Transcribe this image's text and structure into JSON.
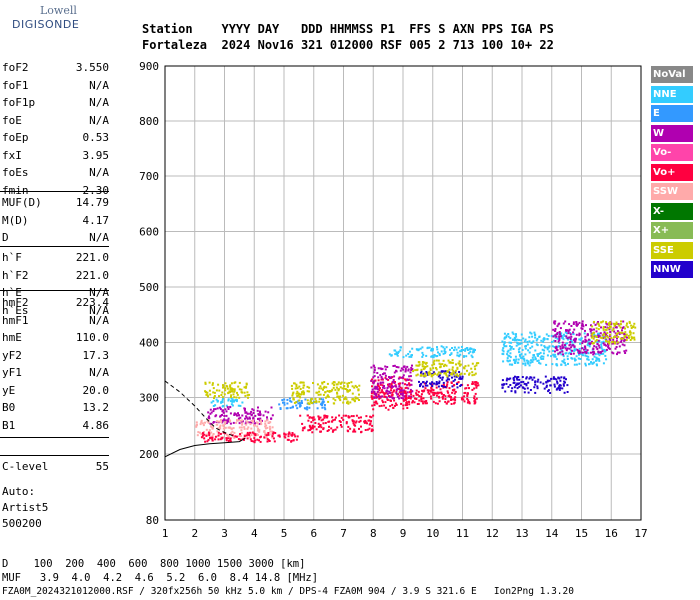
{
  "logo": {
    "brand": "Lowell",
    "name": "DIGISONDE"
  },
  "header": {
    "labels": "Station    YYYY DAY   DDD HHMMSS P1  FFS S AXN PPS IGA PS",
    "values": "Fortaleza  2024 Nov16 321 012000 RSF 005 2 713 100 10+ 22"
  },
  "params_group1": [
    {
      "label": "foF2",
      "value": "3.550"
    },
    {
      "label": "foF1",
      "value": "N/A"
    },
    {
      "label": "foF1p",
      "value": "N/A"
    },
    {
      "label": "foE",
      "value": "N/A"
    },
    {
      "label": "foEp",
      "value": "0.53"
    },
    {
      "label": "fxI",
      "value": "3.95"
    },
    {
      "label": "foEs",
      "value": "N/A"
    },
    {
      "label": "fmin",
      "value": "2.30"
    }
  ],
  "params_group2": [
    {
      "label": "MUF(D)",
      "value": "14.79"
    },
    {
      "label": "M(D)",
      "value": "4.17"
    },
    {
      "label": "D",
      "value": "N/A"
    }
  ],
  "params_group3": [
    {
      "label": "h`F",
      "value": "221.0"
    },
    {
      "label": "h`F2",
      "value": "221.0"
    },
    {
      "label": "h`E",
      "value": "N/A"
    },
    {
      "label": "h`Es",
      "value": "N/A"
    }
  ],
  "params_group4": [
    {
      "label": "hmF2",
      "value": "223.4"
    },
    {
      "label": "hmF1",
      "value": "N/A"
    },
    {
      "label": "hmE",
      "value": "110.0"
    },
    {
      "label": "yF2",
      "value": "17.3"
    },
    {
      "label": "yF1",
      "value": "N/A"
    },
    {
      "label": "yE",
      "value": "20.0"
    },
    {
      "label": "B0",
      "value": "13.2"
    },
    {
      "label": "B1",
      "value": "4.86"
    }
  ],
  "clevel": {
    "label": "C-level",
    "value": "55"
  },
  "auto": [
    "Auto:",
    "Artist5",
    "500200"
  ],
  "bottom": {
    "d_line": "D    100  200  400  600  800 1000 1500 3000 [km]",
    "muf_line": "MUF   3.9  4.0  4.2  4.6  5.2  6.0  8.4 14.8 [MHz]",
    "file_line": "FZA0M_2024321012000.RSF / 320fx256h 50 kHz 5.0 km / DPS-4 FZA0M 904 / 3.9 S 321.6 E   Ion2Png 1.3.20"
  },
  "legend": [
    {
      "label": "NoVal",
      "color": "#888888"
    },
    {
      "label": "NNE",
      "color": "#33ccff"
    },
    {
      "label": "E",
      "color": "#3399ff"
    },
    {
      "label": "W",
      "color": "#b000b0"
    },
    {
      "label": "Vo-",
      "color": "#ff44aa"
    },
    {
      "label": "Vo+",
      "color": "#ff0040"
    },
    {
      "label": "SSW",
      "color": "#ffaaaa"
    },
    {
      "label": "X-",
      "color": "#007700"
    },
    {
      "label": "X+",
      "color": "#88bb55"
    },
    {
      "label": "SSE",
      "color": "#cccc00"
    },
    {
      "label": "NNW",
      "color": "#2200cc"
    }
  ],
  "chart_data": {
    "type": "scatter",
    "title": "",
    "xlabel": "",
    "ylabel": "",
    "xlim": [
      1,
      17
    ],
    "ylim": [
      80,
      900
    ],
    "x_ticks": [
      1,
      2,
      3,
      4,
      5,
      6,
      7,
      8,
      9,
      10,
      11,
      12,
      13,
      14,
      15,
      16,
      17
    ],
    "y_ticks": [
      80,
      200,
      300,
      400,
      500,
      600,
      700,
      800,
      900
    ],
    "grid": true,
    "legend_position": "right",
    "clusters": [
      {
        "name": "NNE",
        "color": "#33ccff",
        "x": [
          2.4,
          3.6
        ],
        "y": [
          285,
          300
        ]
      },
      {
        "name": "W",
        "color": "#b000b0",
        "x": [
          2.4,
          4.6
        ],
        "y": [
          255,
          285
        ]
      },
      {
        "name": "SSW",
        "color": "#ffaaaa",
        "x": [
          2.0,
          4.6
        ],
        "y": [
          230,
          262
        ]
      },
      {
        "name": "Vo+",
        "color": "#ff0040",
        "x": [
          2.2,
          5.5
        ],
        "y": [
          222,
          240
        ]
      },
      {
        "name": "SSE",
        "color": "#cccc00",
        "x": [
          2.3,
          3.8
        ],
        "y": [
          300,
          330
        ]
      },
      {
        "name": "E",
        "color": "#3399ff",
        "x": [
          4.8,
          6.4
        ],
        "y": [
          280,
          300
        ]
      },
      {
        "name": "SSE",
        "color": "#cccc00",
        "x": [
          5.2,
          7.5
        ],
        "y": [
          290,
          330
        ]
      },
      {
        "name": "Vo+",
        "color": "#ff0040",
        "x": [
          5.5,
          8.0
        ],
        "y": [
          240,
          270
        ]
      },
      {
        "name": "Vo+",
        "color": "#ff0040",
        "x": [
          7.9,
          9.2
        ],
        "y": [
          280,
          340
        ]
      },
      {
        "name": "W",
        "color": "#b000b0",
        "x": [
          7.9,
          9.3
        ],
        "y": [
          300,
          360
        ]
      },
      {
        "name": "NNE",
        "color": "#33ccff",
        "x": [
          8.5,
          11.4
        ],
        "y": [
          375,
          395
        ]
      },
      {
        "name": "Vo+",
        "color": "#ff0040",
        "x": [
          9.0,
          11.5
        ],
        "y": [
          290,
          330
        ]
      },
      {
        "name": "NNW",
        "color": "#2200cc",
        "x": [
          9.5,
          11.0
        ],
        "y": [
          320,
          350
        ]
      },
      {
        "name": "SSE",
        "color": "#cccc00",
        "x": [
          9.3,
          11.5
        ],
        "y": [
          340,
          370
        ]
      },
      {
        "name": "NNE",
        "color": "#33ccff",
        "x": [
          12.3,
          15.8
        ],
        "y": [
          360,
          420
        ]
      },
      {
        "name": "NNW",
        "color": "#2200cc",
        "x": [
          12.3,
          14.5
        ],
        "y": [
          310,
          340
        ]
      },
      {
        "name": "W",
        "color": "#b000b0",
        "x": [
          14.0,
          16.5
        ],
        "y": [
          380,
          440
        ]
      },
      {
        "name": "SSE",
        "color": "#cccc00",
        "x": [
          15.3,
          16.8
        ],
        "y": [
          400,
          440
        ]
      }
    ],
    "trace_solid": [
      [
        1.0,
        195
      ],
      [
        1.5,
        208
      ],
      [
        2.0,
        215
      ],
      [
        2.5,
        218
      ],
      [
        3.0,
        220
      ],
      [
        3.5,
        222
      ],
      [
        3.7,
        228
      ]
    ],
    "trace_dashed": [
      [
        1.0,
        330
      ],
      [
        1.5,
        310
      ],
      [
        2.0,
        285
      ],
      [
        2.4,
        262
      ],
      [
        2.7,
        246
      ],
      [
        3.0,
        238
      ],
      [
        3.3,
        232
      ]
    ]
  }
}
